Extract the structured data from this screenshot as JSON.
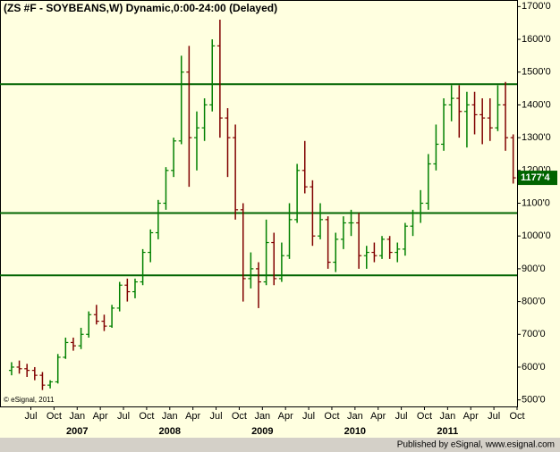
{
  "chart_data": {
    "type": "ohlc",
    "title": "(ZS #F - SOYBEANS,W) Dynamic,0:00-24:00 (Delayed)",
    "x": [
      "2006-04",
      "2006-05",
      "2006-06",
      "2006-07",
      "2006-08",
      "2006-09",
      "2006-10",
      "2006-11",
      "2006-12",
      "2007-01",
      "2007-02",
      "2007-03",
      "2007-04",
      "2007-05",
      "2007-06",
      "2007-07",
      "2007-08",
      "2007-09",
      "2007-10",
      "2007-11",
      "2007-12",
      "2008-01",
      "2008-02",
      "2008-03",
      "2008-04",
      "2008-05",
      "2008-06",
      "2008-07",
      "2008-08",
      "2008-09",
      "2008-10",
      "2008-11",
      "2008-12",
      "2009-01",
      "2009-02",
      "2009-03",
      "2009-04",
      "2009-05",
      "2009-06",
      "2009-07",
      "2009-08",
      "2009-09",
      "2009-10",
      "2009-11",
      "2009-12",
      "2010-01",
      "2010-02",
      "2010-03",
      "2010-04",
      "2010-05",
      "2010-06",
      "2010-07",
      "2010-08",
      "2010-09",
      "2010-10",
      "2010-11",
      "2010-12",
      "2011-01",
      "2011-02",
      "2011-03",
      "2011-04",
      "2011-05",
      "2011-06",
      "2011-07",
      "2011-08",
      "2011-09"
    ],
    "open": [
      590,
      600,
      595,
      590,
      575,
      545,
      555,
      630,
      675,
      665,
      700,
      760,
      740,
      725,
      780,
      850,
      830,
      860,
      950,
      1010,
      1100,
      1200,
      1290,
      1500,
      1300,
      1330,
      1400,
      1580,
      1360,
      1300,
      1080,
      870,
      900,
      860,
      980,
      870,
      940,
      1050,
      1200,
      1150,
      1000,
      1050,
      920,
      990,
      1040,
      1040,
      940,
      950,
      940,
      990,
      950,
      960,
      1030,
      1070,
      1100,
      1220,
      1280,
      1400,
      1420,
      1380,
      1400,
      1370,
      1360,
      1330,
      1400,
      1300
    ],
    "high": [
      615,
      620,
      610,
      600,
      585,
      560,
      640,
      690,
      690,
      720,
      770,
      790,
      760,
      790,
      860,
      870,
      870,
      960,
      1020,
      1110,
      1210,
      1300,
      1550,
      1580,
      1380,
      1420,
      1600,
      1660,
      1390,
      1340,
      1100,
      950,
      920,
      1050,
      1010,
      980,
      1100,
      1220,
      1290,
      1170,
      1100,
      1060,
      1010,
      1060,
      1080,
      1070,
      970,
      980,
      1000,
      1000,
      980,
      1040,
      1080,
      1140,
      1250,
      1340,
      1420,
      1460,
      1460,
      1440,
      1440,
      1420,
      1420,
      1460,
      1470,
      1310
    ],
    "low": [
      575,
      580,
      570,
      560,
      530,
      535,
      550,
      625,
      650,
      655,
      690,
      730,
      710,
      720,
      770,
      800,
      810,
      850,
      920,
      990,
      1080,
      1180,
      1280,
      1150,
      1200,
      1290,
      1380,
      1300,
      1180,
      1050,
      800,
      840,
      780,
      850,
      850,
      860,
      930,
      1040,
      1130,
      970,
      990,
      900,
      890,
      960,
      1000,
      900,
      900,
      920,
      930,
      930,
      920,
      940,
      1000,
      1040,
      1080,
      1200,
      1260,
      1350,
      1300,
      1270,
      1310,
      1280,
      1290,
      1320,
      1260,
      1160
    ],
    "close": [
      600,
      595,
      590,
      575,
      545,
      555,
      630,
      675,
      665,
      700,
      760,
      740,
      725,
      780,
      850,
      830,
      860,
      950,
      1010,
      1100,
      1200,
      1290,
      1500,
      1300,
      1330,
      1400,
      1580,
      1360,
      1300,
      1080,
      870,
      900,
      860,
      980,
      870,
      940,
      1050,
      1200,
      1150,
      1000,
      1050,
      920,
      990,
      1040,
      1040,
      940,
      950,
      940,
      990,
      950,
      960,
      1030,
      1070,
      1100,
      1220,
      1280,
      1400,
      1420,
      1380,
      1400,
      1370,
      1360,
      1330,
      1400,
      1300,
      1177.5
    ],
    "up_color": "#008000",
    "down_color": "#800000",
    "xlim": [
      "2006-03",
      "2011-10"
    ],
    "xticks": [
      {
        "value": "2006-07",
        "label": "Jul"
      },
      {
        "value": "2006-10",
        "label": "Oct"
      },
      {
        "value": "2007-01",
        "label": "Jan"
      },
      {
        "value": "2007-04",
        "label": "Apr"
      },
      {
        "value": "2007-07",
        "label": "Jul"
      },
      {
        "value": "2007-10",
        "label": "Oct"
      },
      {
        "value": "2008-01",
        "label": "Jan"
      },
      {
        "value": "2008-04",
        "label": "Apr"
      },
      {
        "value": "2008-07",
        "label": "Jul"
      },
      {
        "value": "2008-10",
        "label": "Oct"
      },
      {
        "value": "2009-01",
        "label": "Jan"
      },
      {
        "value": "2009-04",
        "label": "Apr"
      },
      {
        "value": "2009-07",
        "label": "Jul"
      },
      {
        "value": "2009-10",
        "label": "Oct"
      },
      {
        "value": "2010-01",
        "label": "Jan"
      },
      {
        "value": "2010-04",
        "label": "Apr"
      },
      {
        "value": "2010-07",
        "label": "Jul"
      },
      {
        "value": "2010-10",
        "label": "Oct"
      },
      {
        "value": "2011-01",
        "label": "Jan"
      },
      {
        "value": "2011-04",
        "label": "Apr"
      },
      {
        "value": "2011-07",
        "label": "Jul"
      },
      {
        "value": "2011-10",
        "label": "Oct"
      }
    ],
    "year_labels": [
      {
        "value": "2007-01",
        "label": "2007"
      },
      {
        "value": "2008-01",
        "label": "2008"
      },
      {
        "value": "2009-01",
        "label": "2009"
      },
      {
        "value": "2010-01",
        "label": "2010"
      },
      {
        "value": "2011-01",
        "label": "2011"
      }
    ],
    "ylim": [
      480,
      1720
    ],
    "yticks": [
      {
        "value": 500,
        "label": "500'0"
      },
      {
        "value": 600,
        "label": "600'0"
      },
      {
        "value": 700,
        "label": "700'0"
      },
      {
        "value": 800,
        "label": "800'0"
      },
      {
        "value": 900,
        "label": "900'0"
      },
      {
        "value": 1000,
        "label": "1000'0"
      },
      {
        "value": 1100,
        "label": "1100'0"
      },
      {
        "value": 1200,
        "label": "1200'0"
      },
      {
        "value": 1300,
        "label": "1300'0"
      },
      {
        "value": 1400,
        "label": "1400'0"
      },
      {
        "value": 1500,
        "label": "1500'0"
      },
      {
        "value": 1600,
        "label": "1600'0"
      },
      {
        "value": 1700,
        "label": "1700'0"
      }
    ],
    "hlines": [
      1463,
      1070,
      880
    ],
    "hline_color": "#006400",
    "last_price": {
      "value": 1177.5,
      "label": "1177'4"
    },
    "copyright": "© eSignal, 2011"
  },
  "footer": "Published by eSignal, www.esignal.com"
}
